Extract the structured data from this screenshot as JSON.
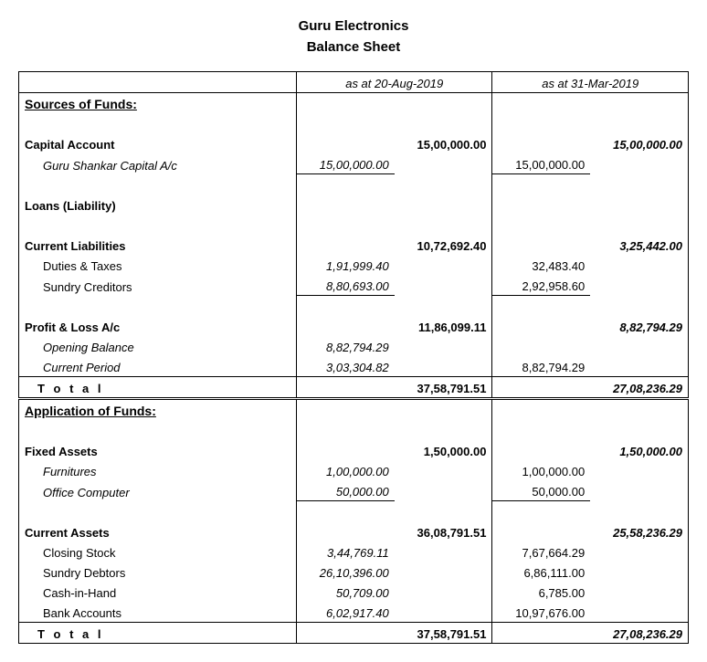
{
  "company": "Guru Electronics",
  "report": "Balance Sheet",
  "period1": "as at 20-Aug-2019",
  "period2": "as at 31-Mar-2019",
  "section_sources": "Sources of Funds:",
  "section_application": "Application of Funds:",
  "total_label": "T o t a l",
  "capital": {
    "label": "Capital Account",
    "total1": "15,00,000.00",
    "total2": "15,00,000.00",
    "sub": {
      "label": "Guru Shankar Capital A/c",
      "v1": "15,00,000.00",
      "v2": "15,00,000.00"
    }
  },
  "loans": {
    "label": "Loans (Liability)"
  },
  "curliab": {
    "label": "Current Liabilities",
    "total1": "10,72,692.40",
    "total2": "3,25,442.00",
    "duties": {
      "label": "Duties & Taxes",
      "v1": "1,91,999.40",
      "v2": "32,483.40"
    },
    "creditors": {
      "label": "Sundry Creditors",
      "v1": "8,80,693.00",
      "v2": "2,92,958.60"
    }
  },
  "pl": {
    "label": "Profit & Loss A/c",
    "total1": "11,86,099.11",
    "total2": "8,82,794.29",
    "opening": {
      "label": "Opening Balance",
      "v1": "8,82,794.29"
    },
    "current": {
      "label": "Current Period",
      "v1": "3,03,304.82",
      "v2": "8,82,794.29"
    }
  },
  "sources_total": {
    "v1": "37,58,791.51",
    "v2": "27,08,236.29"
  },
  "fixed": {
    "label": "Fixed Assets",
    "total1": "1,50,000.00",
    "total2": "1,50,000.00",
    "furn": {
      "label": "Furnitures",
      "v1": "1,00,000.00",
      "v2": "1,00,000.00"
    },
    "comp": {
      "label": "Office Computer",
      "v1": "50,000.00",
      "v2": "50,000.00"
    }
  },
  "curassets": {
    "label": "Current Assets",
    "total1": "36,08,791.51",
    "total2": "25,58,236.29",
    "stock": {
      "label": "Closing Stock",
      "v1": "3,44,769.11",
      "v2": "7,67,664.29"
    },
    "debtors": {
      "label": "Sundry Debtors",
      "v1": "26,10,396.00",
      "v2": "6,86,111.00"
    },
    "cash": {
      "label": "Cash-in-Hand",
      "v1": "50,709.00",
      "v2": "6,785.00"
    },
    "bank": {
      "label": "Bank Accounts",
      "v1": "6,02,917.40",
      "v2": "10,97,676.00"
    }
  },
  "app_total": {
    "v1": "37,58,791.51",
    "v2": "27,08,236.29"
  }
}
